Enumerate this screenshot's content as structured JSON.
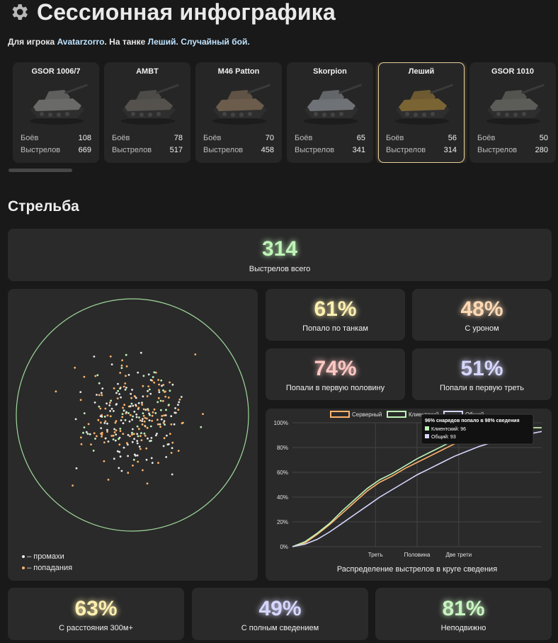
{
  "header": {
    "title": "Сессионная инфографика",
    "subtitle_prefix": "Для игрока",
    "player": "Avatarzorro",
    "tank_prefix": ". На танке",
    "tank": "Леший",
    "mode": ". Случайный бой.",
    "gear_icon": "gear-icon"
  },
  "tanks": [
    {
      "name": "GSOR 1006/7",
      "battles_label": "Боёв",
      "battles": "108",
      "shots_label": "Выстрелов",
      "shots": "669",
      "color": "#6a6a68",
      "selected": false
    },
    {
      "name": "AMBT",
      "battles_label": "Боёв",
      "battles": "78",
      "shots_label": "Выстрелов",
      "shots": "517",
      "color": "#55524e",
      "selected": false
    },
    {
      "name": "M46 Patton",
      "battles_label": "Боёв",
      "battles": "70",
      "shots_label": "Выстрелов",
      "shots": "458",
      "color": "#6b5c4c",
      "selected": false
    },
    {
      "name": "Skorpion",
      "battles_label": "Боёв",
      "battles": "65",
      "shots_label": "Выстрелов",
      "shots": "341",
      "color": "#6f7276",
      "selected": false
    },
    {
      "name": "Леший",
      "battles_label": "Боёв",
      "battles": "56",
      "shots_label": "Выстрелов",
      "shots": "314",
      "color": "#7a6434",
      "selected": true
    },
    {
      "name": "GSOR 1010",
      "battles_label": "Боёв",
      "battles": "50",
      "shots_label": "Выстрелов",
      "shots": "280",
      "color": "#5c5c58",
      "selected": false
    }
  ],
  "shooting": {
    "section_title": "Стрельба",
    "total": {
      "value": "314",
      "label": "Выстрелов всего",
      "color": "#bff5b8"
    },
    "stats": [
      {
        "value": "61%",
        "label": "Попало по танкам",
        "color": "#fff0b0"
      },
      {
        "value": "48%",
        "label": "С уроном",
        "color": "#ffd9b3"
      },
      {
        "value": "74%",
        "label": "Попали в первую половину",
        "color": "#ffc7c2"
      },
      {
        "value": "51%",
        "label": "Попали в первую треть",
        "color": "#d6d6ff"
      }
    ],
    "bottom": [
      {
        "value": "63%",
        "label": "С расстояния 300м+",
        "color": "#fff0b0"
      },
      {
        "value": "49%",
        "label": "С полным сведением",
        "color": "#d6d6ff"
      },
      {
        "value": "81%",
        "label": "Неподвижно",
        "color": "#c8f5c0"
      }
    ],
    "dispersion": {
      "miss_legend": "– промахи",
      "hit_legend": "– попадания",
      "miss_color": "#e9e9e9",
      "hit_color": "#ffb36b",
      "circle_color": "#9ed89a"
    }
  },
  "chart_data": {
    "type": "line",
    "title": "",
    "xlabel": "Распределение выстрелов в круге сведения",
    "ylabel": "",
    "legend_placement": "top",
    "ylim": [
      0,
      100
    ],
    "xlim": [
      0,
      100
    ],
    "grid": true,
    "y_ticks": [
      "0%",
      "20%",
      "40%",
      "60%",
      "80%",
      "100%"
    ],
    "x_ticks": [
      {
        "label": "Треть",
        "at": 33.3
      },
      {
        "label": "Половина",
        "at": 50
      },
      {
        "label": "Две трети",
        "at": 66.7
      }
    ],
    "series": [
      {
        "name": "Серверный",
        "color": "#ffb36b",
        "x": [
          0,
          5,
          10,
          15,
          20,
          25,
          30,
          35,
          40,
          45,
          50,
          55,
          60,
          65,
          70,
          75,
          80,
          85,
          90,
          95,
          100
        ],
        "values": [
          0,
          3,
          10,
          18,
          27,
          36,
          45,
          52,
          57,
          63,
          68,
          73,
          78,
          83,
          88,
          91,
          93,
          94,
          95,
          96,
          96
        ]
      },
      {
        "name": "Клиентский",
        "color": "#bff5b8",
        "x": [
          0,
          5,
          10,
          15,
          20,
          25,
          30,
          35,
          40,
          45,
          50,
          55,
          60,
          65,
          70,
          75,
          80,
          85,
          90,
          95,
          100
        ],
        "values": [
          0,
          4,
          11,
          19,
          29,
          38,
          47,
          54,
          59,
          65,
          71,
          76,
          81,
          86,
          90,
          92,
          94,
          95,
          96,
          96,
          96
        ]
      },
      {
        "name": "Общий",
        "color": "#d6d6ff",
        "x": [
          0,
          5,
          10,
          15,
          20,
          25,
          30,
          35,
          40,
          45,
          50,
          55,
          60,
          65,
          70,
          75,
          80,
          85,
          90,
          95,
          100
        ],
        "values": [
          0,
          2,
          6,
          12,
          19,
          26,
          33,
          40,
          46,
          52,
          58,
          63,
          68,
          73,
          77,
          81,
          84,
          87,
          89,
          91,
          93
        ]
      }
    ],
    "tooltip": {
      "title": "96% снарядов попало в 98% сведения",
      "rows": [
        {
          "label": "Клиентский: 96",
          "color": "#bff5b8"
        },
        {
          "label": "Общий: 93",
          "color": "#d6d6ff"
        }
      ]
    }
  }
}
